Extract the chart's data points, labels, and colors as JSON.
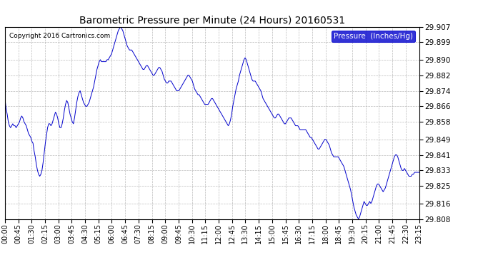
{
  "title": "Barometric Pressure per Minute (24 Hours) 20160531",
  "copyright": "Copyright 2016 Cartronics.com",
  "legend_label": "Pressure  (Inches/Hg)",
  "line_color": "#0000cc",
  "background_color": "#ffffff",
  "grid_color": "#aaaaaa",
  "ylim": [
    29.808,
    29.907
  ],
  "yticks": [
    29.808,
    29.816,
    29.825,
    29.833,
    29.841,
    29.849,
    29.858,
    29.866,
    29.874,
    29.882,
    29.89,
    29.899,
    29.907
  ],
  "xtick_labels": [
    "00:00",
    "00:45",
    "01:30",
    "02:15",
    "03:00",
    "03:45",
    "04:30",
    "05:15",
    "06:00",
    "06:45",
    "07:30",
    "08:15",
    "09:00",
    "09:45",
    "10:30",
    "11:15",
    "12:00",
    "12:45",
    "13:30",
    "14:15",
    "15:00",
    "15:45",
    "16:30",
    "17:15",
    "18:00",
    "18:45",
    "19:30",
    "20:15",
    "21:00",
    "21:45",
    "22:30",
    "23:15"
  ],
  "pressure_data": [
    29.87,
    29.865,
    29.862,
    29.858,
    29.856,
    29.855,
    29.856,
    29.857,
    29.856,
    29.856,
    29.855,
    29.856,
    29.857,
    29.858,
    29.86,
    29.861,
    29.86,
    29.858,
    29.857,
    29.856,
    29.854,
    29.852,
    29.851,
    29.85,
    29.848,
    29.847,
    29.843,
    29.84,
    29.836,
    29.833,
    29.831,
    29.83,
    29.831,
    29.833,
    29.837,
    29.842,
    29.847,
    29.851,
    29.855,
    29.857,
    29.857,
    29.856,
    29.857,
    29.859,
    29.861,
    29.863,
    29.862,
    29.86,
    29.857,
    29.855,
    29.855,
    29.857,
    29.86,
    29.864,
    29.867,
    29.869,
    29.868,
    29.865,
    29.862,
    29.86,
    29.858,
    29.857,
    29.86,
    29.864,
    29.868,
    29.871,
    29.873,
    29.874,
    29.872,
    29.87,
    29.868,
    29.867,
    29.866,
    29.866,
    29.867,
    29.868,
    29.87,
    29.872,
    29.874,
    29.876,
    29.879,
    29.882,
    29.885,
    29.887,
    29.889,
    29.89,
    29.889,
    29.889,
    29.889,
    29.889,
    29.889,
    29.89,
    29.89,
    29.891,
    29.892,
    29.893,
    29.895,
    29.897,
    29.899,
    29.901,
    29.903,
    29.905,
    29.906,
    29.907,
    29.906,
    29.905,
    29.903,
    29.901,
    29.899,
    29.897,
    29.896,
    29.895,
    29.895,
    29.895,
    29.894,
    29.893,
    29.892,
    29.891,
    29.89,
    29.889,
    29.888,
    29.887,
    29.886,
    29.885,
    29.885,
    29.886,
    29.887,
    29.887,
    29.886,
    29.885,
    29.884,
    29.883,
    29.882,
    29.882,
    29.883,
    29.884,
    29.885,
    29.886,
    29.886,
    29.885,
    29.884,
    29.882,
    29.88,
    29.879,
    29.878,
    29.878,
    29.879,
    29.879,
    29.879,
    29.878,
    29.877,
    29.876,
    29.875,
    29.874,
    29.874,
    29.874,
    29.875,
    29.876,
    29.877,
    29.878,
    29.879,
    29.88,
    29.881,
    29.882,
    29.882,
    29.881,
    29.88,
    29.879,
    29.877,
    29.875,
    29.874,
    29.873,
    29.872,
    29.872,
    29.871,
    29.87,
    29.869,
    29.868,
    29.867,
    29.867,
    29.867,
    29.867,
    29.868,
    29.869,
    29.87,
    29.87,
    29.869,
    29.868,
    29.867,
    29.866,
    29.865,
    29.864,
    29.863,
    29.862,
    29.861,
    29.86,
    29.859,
    29.858,
    29.857,
    29.856,
    29.857,
    29.859,
    29.862,
    29.866,
    29.869,
    29.872,
    29.875,
    29.877,
    29.879,
    29.882,
    29.884,
    29.886,
    29.888,
    29.89,
    29.891,
    29.89,
    29.888,
    29.886,
    29.884,
    29.882,
    29.88,
    29.879,
    29.879,
    29.879,
    29.878,
    29.877,
    29.876,
    29.875,
    29.874,
    29.872,
    29.87,
    29.869,
    29.868,
    29.867,
    29.866,
    29.865,
    29.864,
    29.863,
    29.862,
    29.861,
    29.86,
    29.86,
    29.861,
    29.862,
    29.862,
    29.861,
    29.86,
    29.859,
    29.858,
    29.857,
    29.857,
    29.858,
    29.859,
    29.86,
    29.86,
    29.86,
    29.859,
    29.858,
    29.857,
    29.856,
    29.856,
    29.856,
    29.855,
    29.854,
    29.854,
    29.854,
    29.854,
    29.854,
    29.854,
    29.853,
    29.852,
    29.851,
    29.85,
    29.85,
    29.849,
    29.848,
    29.847,
    29.846,
    29.845,
    29.844,
    29.844,
    29.845,
    29.846,
    29.847,
    29.848,
    29.849,
    29.849,
    29.848,
    29.847,
    29.846,
    29.844,
    29.842,
    29.841,
    29.84,
    29.84,
    29.84,
    29.84,
    29.84,
    29.839,
    29.838,
    29.837,
    29.836,
    29.835,
    29.833,
    29.831,
    29.829,
    29.827,
    29.825,
    29.823,
    29.82,
    29.817,
    29.814,
    29.812,
    29.81,
    29.809,
    29.808,
    29.809,
    29.811,
    29.813,
    29.815,
    29.817,
    29.816,
    29.815,
    29.815,
    29.816,
    29.817,
    29.816,
    29.817,
    29.819,
    29.821,
    29.823,
    29.825,
    29.826,
    29.826,
    29.825,
    29.824,
    29.823,
    29.822,
    29.823,
    29.824,
    29.826,
    29.828,
    29.83,
    29.832,
    29.834,
    29.836,
    29.838,
    29.84,
    29.841,
    29.841,
    29.84,
    29.838,
    29.836,
    29.834,
    29.833,
    29.833,
    29.834,
    29.833,
    29.832,
    29.831,
    29.83,
    29.83,
    29.83,
    29.831,
    29.831,
    29.832,
    29.832,
    29.832,
    29.832,
    29.832
  ],
  "figsize": [
    6.9,
    3.75
  ],
  "dpi": 100
}
